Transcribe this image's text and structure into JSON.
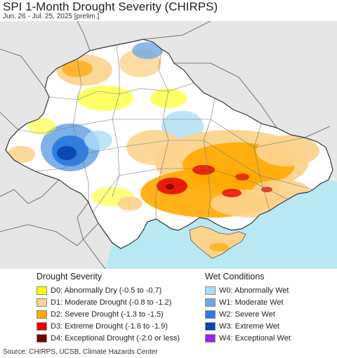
{
  "header": {
    "title": "SPI 1-Month Drought Severity (CHIRPS)",
    "subtitle": "Jun. 26 - Jul. 25, 2025 [prelim.]"
  },
  "legend": {
    "drought": {
      "heading": "Drought Severity",
      "items": [
        {
          "label": "D0: Abnormally Dry (-0.5 to -0.7)",
          "color": "#ffff00"
        },
        {
          "label": "D1: Moderate Drought (-0.8 to -1.2)",
          "color": "#fcd38c"
        },
        {
          "label": "D2: Severe Drought (-1.3 to -1.5)",
          "color": "#ffaa00"
        },
        {
          "label": "D3: Extreme Drought (-1.6 to -1.9)",
          "color": "#e60000"
        },
        {
          "label": "D4: Exceptional Drought (-2.0 or less)",
          "color": "#730000"
        }
      ]
    },
    "wet": {
      "heading": "Wet Conditions",
      "items": [
        {
          "label": "W0: Abnormally Wet",
          "color": "#aadff5"
        },
        {
          "label": "W1: Moderate Wet",
          "color": "#6fa8e6"
        },
        {
          "label": "W2: Severe Wet",
          "color": "#2a7ae2"
        },
        {
          "label": "W3: Extreme Wet",
          "color": "#0a44b0"
        },
        {
          "label": "W4: Exceptional Wet",
          "color": "#a020f0"
        }
      ]
    }
  },
  "map": {
    "sea_color": "#b8e8f4",
    "outside_color": "#e6e6e6",
    "land_color": "#ffffff",
    "border_color": "#555555"
  },
  "footer": {
    "source": "Source: CHIRPS, UCSB, Climate Hazards Center"
  }
}
